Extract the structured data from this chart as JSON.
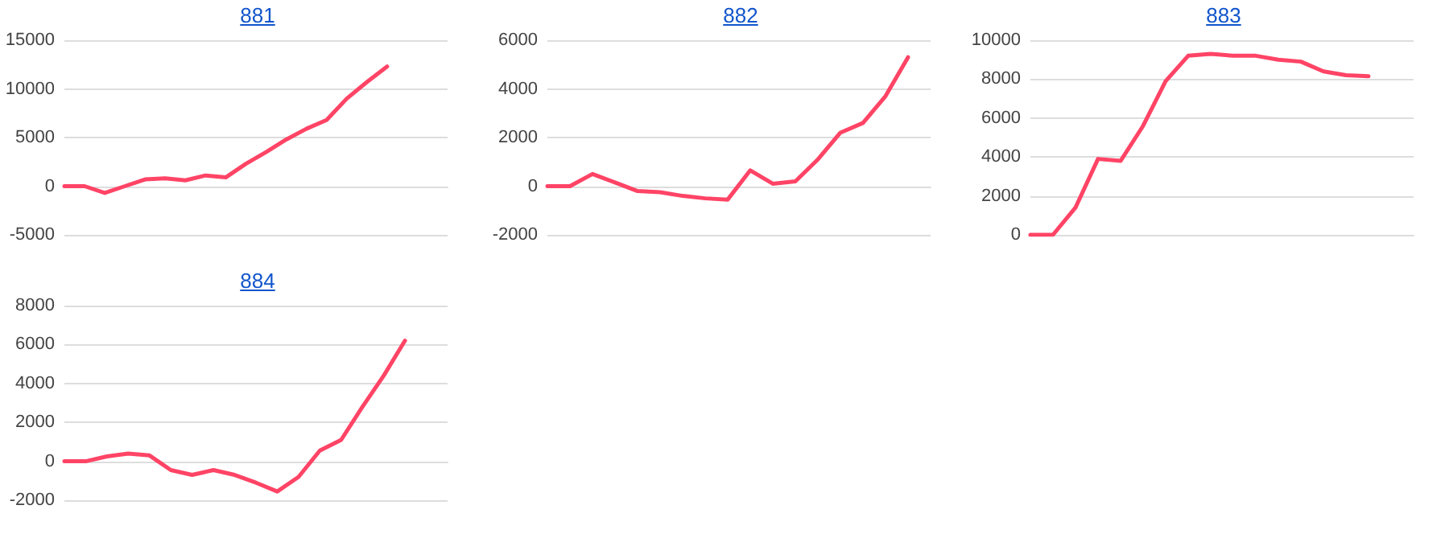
{
  "chart_data": [
    {
      "type": "line",
      "title": "881",
      "categories": [
        null,
        null,
        null,
        null,
        null,
        null,
        null,
        null,
        null,
        null,
        null,
        null,
        null,
        null,
        null,
        null,
        null,
        null,
        null,
        null
      ],
      "color": "#ff4466",
      "values": [
        0,
        0,
        -700,
        0,
        700,
        800,
        600,
        1100,
        900,
        2300,
        3500,
        4800,
        5900,
        6800,
        9000,
        10700,
        12300,
        null,
        null,
        null
      ],
      "ylim": [
        -5000,
        15000
      ],
      "yticks": [
        -5000,
        0,
        5000,
        10000,
        15000
      ],
      "grid": "y",
      "tick_labels": "y"
    },
    {
      "type": "line",
      "title": "882",
      "categories": [
        null,
        null,
        null,
        null,
        null,
        null,
        null,
        null,
        null,
        null,
        null,
        null,
        null,
        null,
        null,
        null,
        null,
        null
      ],
      "color": "#ff4466",
      "values": [
        0,
        0,
        500,
        150,
        -200,
        -250,
        -400,
        -500,
        -550,
        650,
        100,
        200,
        1100,
        2200,
        2600,
        3700,
        5300,
        null
      ],
      "ylim": [
        -2000,
        6000
      ],
      "yticks": [
        -2000,
        0,
        2000,
        4000,
        6000
      ],
      "grid": "y",
      "tick_labels": "y"
    },
    {
      "type": "line",
      "title": "883",
      "categories": [
        null,
        null,
        null,
        null,
        null,
        null,
        null,
        null,
        null,
        null,
        null,
        null,
        null,
        null,
        null,
        null,
        null,
        null
      ],
      "color": "#ff4466",
      "values": [
        0,
        0,
        1400,
        3900,
        3800,
        5600,
        7900,
        9200,
        9300,
        9200,
        9200,
        9000,
        8900,
        8400,
        8200,
        8150,
        null,
        null
      ],
      "ylim": [
        0,
        10000
      ],
      "yticks": [
        0,
        2000,
        4000,
        6000,
        8000,
        10000
      ],
      "grid": "y",
      "tick_labels": "y"
    },
    {
      "type": "line",
      "title": "884",
      "categories": [
        null,
        null,
        null,
        null,
        null,
        null,
        null,
        null,
        null,
        null,
        null,
        null,
        null,
        null,
        null,
        null,
        null,
        null,
        null
      ],
      "color": "#ff4466",
      "values": [
        0,
        0,
        250,
        400,
        300,
        -450,
        -700,
        -450,
        -700,
        -1100,
        -1550,
        -800,
        550,
        1100,
        2800,
        4400,
        6200,
        null,
        null
      ],
      "ylim": [
        -2000,
        8000
      ],
      "yticks": [
        -2000,
        0,
        2000,
        4000,
        6000,
        8000
      ],
      "grid": "y",
      "tick_labels": "y"
    }
  ]
}
